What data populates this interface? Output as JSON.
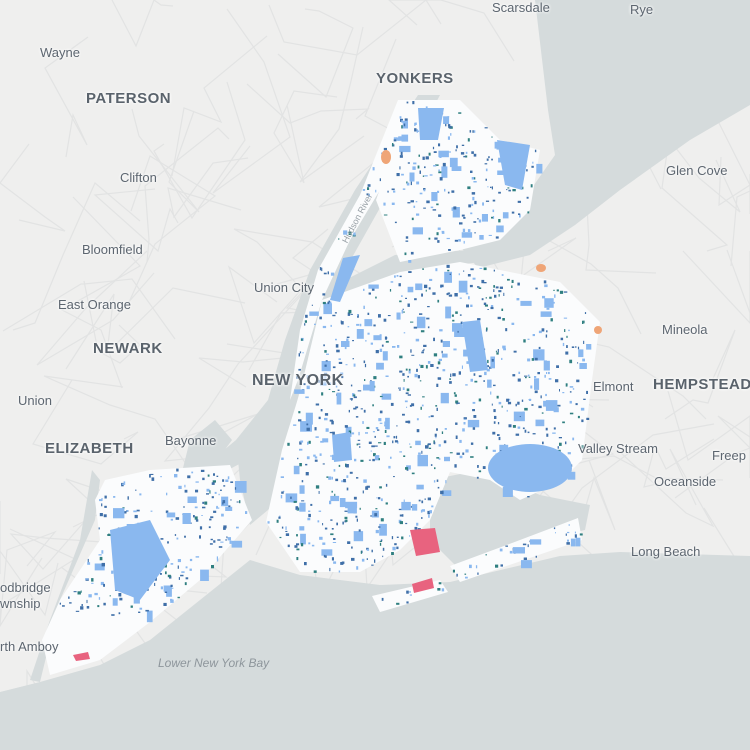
{
  "map": {
    "colors": {
      "water": "#d5dbdc",
      "land": "#efefee",
      "city_land": "#fbfcfd",
      "parcel_light_blue": "#8ab8ef",
      "parcel_dark_blue": "#3f6fa8",
      "parcel_teal": "#2f7f80",
      "parcel_pink": "#e8637f",
      "parcel_orange": "#efa577"
    },
    "labels": {
      "scarsdale": "Scarsdale",
      "rye": "Rye",
      "wayne": "Wayne",
      "yonkers": "YONKERS",
      "paterson": "PATERSON",
      "clifton": "Clifton",
      "glen_cove": "Glen Cove",
      "bloomfield": "Bloomfield",
      "union_city": "Union City",
      "east_orange": "East Orange",
      "mineola": "Mineola",
      "newark": "NEWARK",
      "new_york": "NEW YORK",
      "elmont": "Elmont",
      "hempstead": "HEMPSTEAD",
      "union": "Union",
      "bayonne": "Bayonne",
      "elizabeth": "ELIZABETH",
      "valley_stream": "Valley Stream",
      "freeport": "Freep",
      "oceanside": "Oceanside",
      "long_beach": "Long Beach",
      "woodbridge": "odbridge",
      "township": "wnship",
      "perth_amboy": "rth Amboy",
      "lower_bay": "Lower New York Bay",
      "hudson_river": "Hudson River"
    }
  }
}
